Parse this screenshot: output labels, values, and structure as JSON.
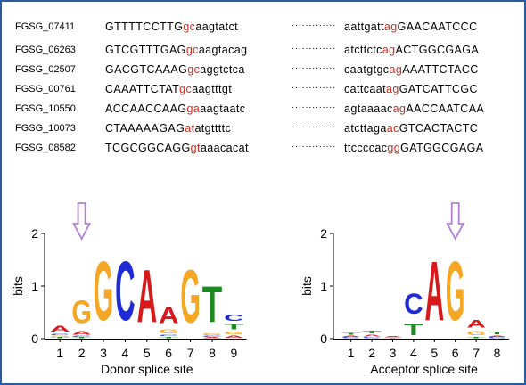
{
  "sequences": [
    {
      "gene": "FGSG_07411",
      "donor_upper": "GTTTTCCTTG",
      "donor_site": "gc",
      "donor_lower": "aagtatct",
      "acceptor_lower": "aattgatt",
      "acceptor_site": "ag",
      "acceptor_upper": "GAACAATCCC"
    },
    {
      "gene": "FGSG_06263",
      "donor_upper": "GTCGTTTGAG",
      "donor_site": "gc",
      "donor_lower": "aagtacag",
      "acceptor_lower": "atcttctc",
      "acceptor_site": "ag",
      "acceptor_upper": "ACTGGCGAGA"
    },
    {
      "gene": "FGSG_02507",
      "donor_upper": "GACGTCAAAG",
      "donor_site": "gc",
      "donor_lower": "aggtctca",
      "acceptor_lower": "caatgtgc",
      "acceptor_site": "ag",
      "acceptor_upper": "AAATTCTACC"
    },
    {
      "gene": "FGSG_00761",
      "donor_upper": "CAAATTCTAT",
      "donor_site": "gc",
      "donor_lower": "aagtttgt",
      "acceptor_lower": "cattcaat",
      "acceptor_site": "ag",
      "acceptor_upper": "GATCATTCGC"
    },
    {
      "gene": "FGSG_10550",
      "donor_upper": "ACCAACCAAG",
      "donor_site": "ga",
      "donor_lower": "aagtaatc",
      "acceptor_lower": "agtaaaac",
      "acceptor_site": "ag",
      "acceptor_upper": "AACCAATCAA"
    },
    {
      "gene": "FGSG_10073",
      "donor_upper": "CTAAAAAGAG",
      "donor_site": "at",
      "donor_lower": "atgttttc",
      "acceptor_lower": "atcttaga",
      "acceptor_site": "ac",
      "acceptor_upper": "GTCACTACTC"
    },
    {
      "gene": "FGSG_08582",
      "donor_upper": "TCGCGGCAGG",
      "donor_site": "gt",
      "donor_lower": "aaacacat",
      "acceptor_lower": "ttccccac",
      "acceptor_site": "gg",
      "acceptor_upper": "GATGGCGAGA"
    }
  ],
  "gap_dots": "·············",
  "colors": {
    "A": "#d7191c",
    "C": "#1f2bd6",
    "G": "#f5a623",
    "T": "#1e8a22",
    "site_highlight": "#d42a1f",
    "arrow": "#b37ed6",
    "frame": "#2c5aa0"
  },
  "logos": [
    {
      "xlabel": "Donor splice site",
      "ylabel": "bits",
      "yticks": [
        "0",
        "1",
        "2"
      ],
      "ylim": [
        0,
        2
      ],
      "positions": [
        "1",
        "2",
        "3",
        "4",
        "5",
        "6",
        "7",
        "8",
        "9"
      ],
      "arrow_at_position": 2,
      "stacks": [
        [
          {
            "b": "T",
            "h": 0.03
          },
          {
            "b": "G",
            "h": 0.03
          },
          {
            "b": "C",
            "h": 0.04
          },
          {
            "b": "A",
            "h": 0.18
          }
        ],
        [
          {
            "b": "T",
            "h": 0.03
          },
          {
            "b": "C",
            "h": 0.03
          },
          {
            "b": "A",
            "h": 0.1
          },
          {
            "b": "G",
            "h": 0.68
          }
        ],
        [
          {
            "b": "G",
            "h": 1.8
          }
        ],
        [
          {
            "b": "C",
            "h": 1.8
          }
        ],
        [
          {
            "b": "A",
            "h": 1.6
          }
        ],
        [
          {
            "b": "T",
            "h": 0.04
          },
          {
            "b": "C",
            "h": 0.04
          },
          {
            "b": "G",
            "h": 0.12
          },
          {
            "b": "A",
            "h": 0.5
          }
        ],
        [
          {
            "b": "G",
            "h": 1.6
          }
        ],
        [
          {
            "b": "A",
            "h": 0.03
          },
          {
            "b": "C",
            "h": 0.03
          },
          {
            "b": "G",
            "h": 0.05
          },
          {
            "b": "T",
            "h": 1.1
          }
        ],
        [
          {
            "b": "A",
            "h": 0.07
          },
          {
            "b": "G",
            "h": 0.08
          },
          {
            "b": "T",
            "h": 0.15
          },
          {
            "b": "C",
            "h": 0.2
          }
        ]
      ]
    },
    {
      "xlabel": "Acceptor splice site",
      "ylabel": "bits",
      "yticks": [
        "0",
        "1",
        "2"
      ],
      "ylim": [
        0,
        2
      ],
      "positions": [
        "1",
        "2",
        "3",
        "4",
        "5",
        "6",
        "7",
        "8"
      ],
      "arrow_at_position": 6,
      "stacks": [
        [
          {
            "b": "C",
            "h": 0.03
          },
          {
            "b": "A",
            "h": 0.04
          },
          {
            "b": "T",
            "h": 0.05
          }
        ],
        [
          {
            "b": "C",
            "h": 0.03
          },
          {
            "b": "A",
            "h": 0.05
          },
          {
            "b": "T",
            "h": 0.09
          }
        ],
        [
          {
            "b": "T",
            "h": 0.02
          },
          {
            "b": "A",
            "h": 0.04
          }
        ],
        [
          {
            "b": "T",
            "h": 0.35
          },
          {
            "b": "C",
            "h": 0.62
          }
        ],
        [
          {
            "b": "A",
            "h": 1.8
          }
        ],
        [
          {
            "b": "G",
            "h": 1.8
          }
        ],
        [
          {
            "b": "T",
            "h": 0.04
          },
          {
            "b": "G",
            "h": 0.13
          },
          {
            "b": "A",
            "h": 0.22
          }
        ],
        [
          {
            "b": "C",
            "h": 0.03
          },
          {
            "b": "A",
            "h": 0.04
          },
          {
            "b": "T",
            "h": 0.06
          }
        ]
      ]
    }
  ]
}
